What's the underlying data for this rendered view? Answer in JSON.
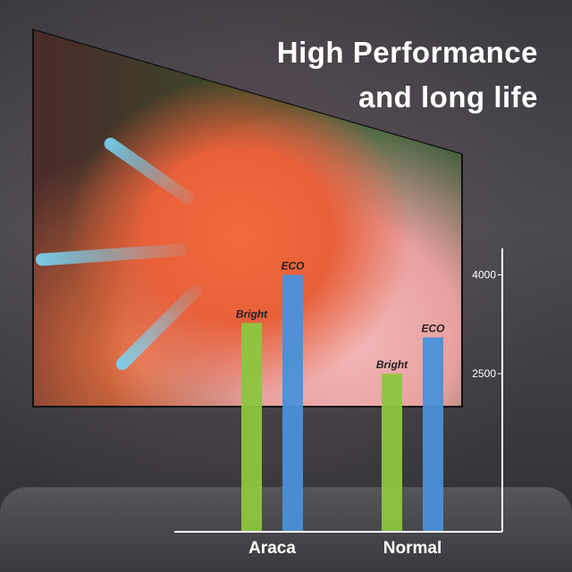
{
  "title": {
    "line1": "High Performance",
    "line2": "and long life"
  },
  "chart_data": {
    "type": "bar",
    "title": "",
    "categories": [
      "Araca",
      "Normal"
    ],
    "series": [
      {
        "name": "Bright",
        "values": [
          3270,
          2500
        ],
        "color": "#8cc63f"
      },
      {
        "name": "ECO",
        "values": [
          4000,
          3050
        ],
        "color": "#4a90d9"
      }
    ],
    "yticks": [
      2500,
      4000
    ],
    "ylim": [
      100,
      4400
    ],
    "xlabel": "",
    "ylabel": "",
    "grid": false,
    "bar_labels": "series name above each bar"
  },
  "colors": {
    "bright": "#8cc63f",
    "eco": "#4a90d9",
    "axis": "#ffffff",
    "text": "#ffffff"
  }
}
